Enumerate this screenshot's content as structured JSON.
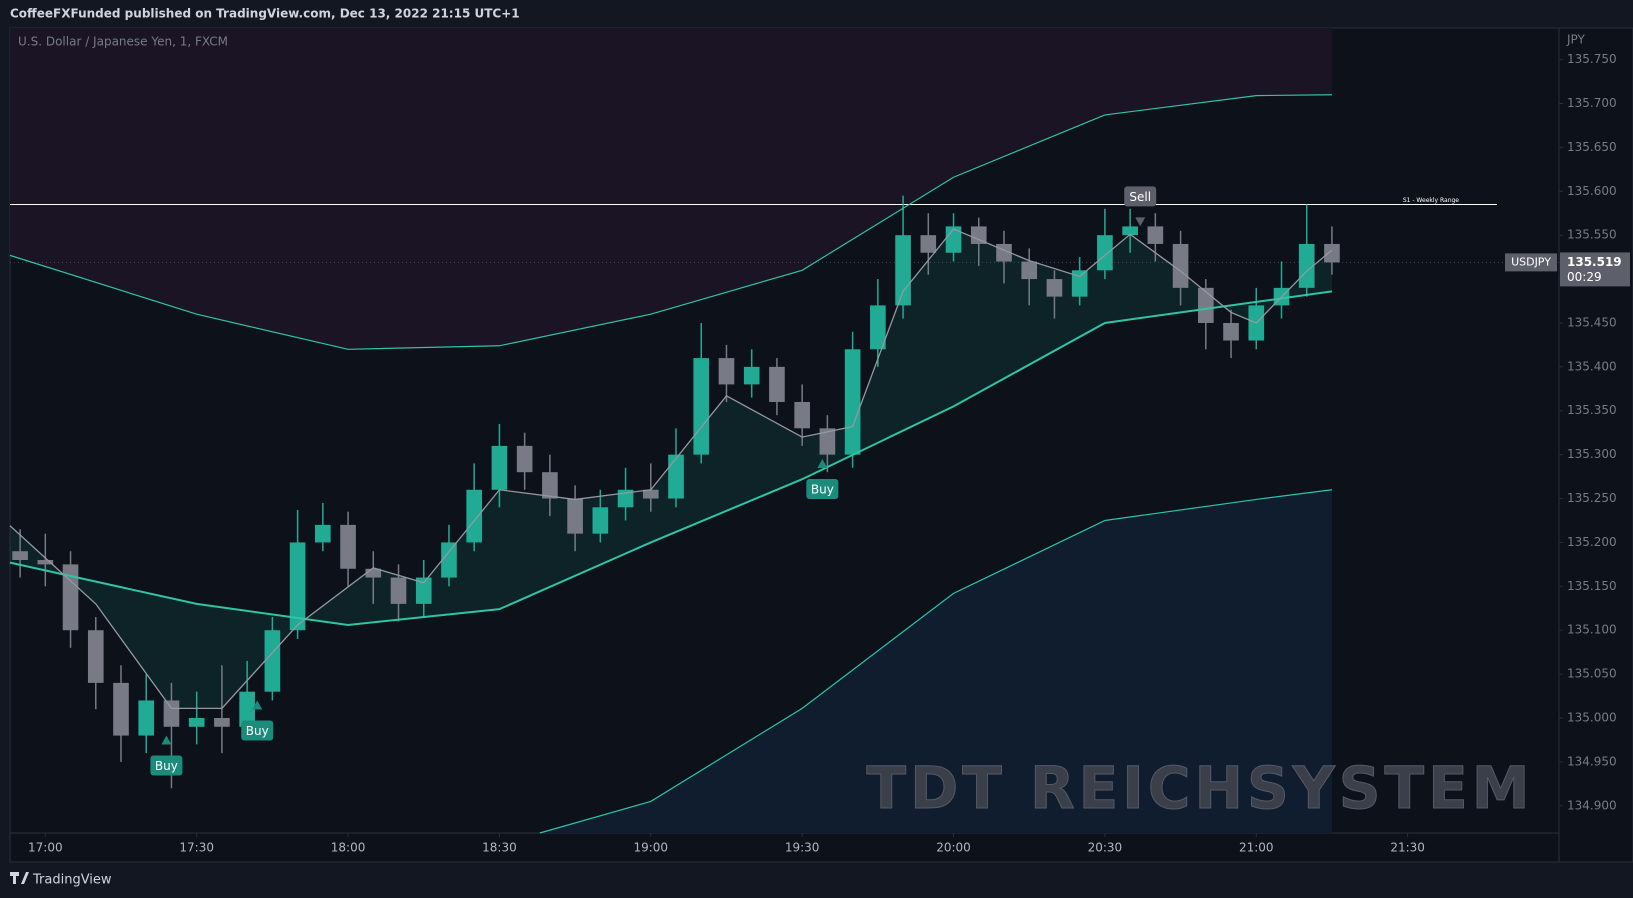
{
  "header": {
    "publisher": "CoffeeFXFunded published on TradingView.com, Dec 13, 2022 21:15 UTC+1",
    "footer": "TradingView"
  },
  "chart_data": {
    "type": "candlestick",
    "title": "U.S. Dollar / Japanese Yen, 1, FXCM",
    "y_axis_label": "JPY",
    "watermark": "TDT REICHSYSTEM",
    "up_color": "#22ab94",
    "down_color": "#787b86",
    "xlim": [
      1013,
      1320
    ],
    "ylim": [
      134.869,
      135.786
    ],
    "xticks": [
      {
        "value": 1020,
        "label": "17:00"
      },
      {
        "value": 1050,
        "label": "17:30"
      },
      {
        "value": 1080,
        "label": "18:00"
      },
      {
        "value": 1110,
        "label": "18:30"
      },
      {
        "value": 1140,
        "label": "19:00"
      },
      {
        "value": 1170,
        "label": "19:30"
      },
      {
        "value": 1200,
        "label": "20:00"
      },
      {
        "value": 1230,
        "label": "20:30"
      },
      {
        "value": 1260,
        "label": "21:00"
      },
      {
        "value": 1290,
        "label": "21:30"
      }
    ],
    "yticks": [
      {
        "value": 134.9,
        "label": "134.900"
      },
      {
        "value": 134.95,
        "label": "134.950"
      },
      {
        "value": 135.0,
        "label": "135.000"
      },
      {
        "value": 135.05,
        "label": "135.050"
      },
      {
        "value": 135.1,
        "label": "135.100"
      },
      {
        "value": 135.15,
        "label": "135.150"
      },
      {
        "value": 135.2,
        "label": "135.200"
      },
      {
        "value": 135.25,
        "label": "135.250"
      },
      {
        "value": 135.3,
        "label": "135.300"
      },
      {
        "value": 135.35,
        "label": "135.350"
      },
      {
        "value": 135.4,
        "label": "135.400"
      },
      {
        "value": 135.45,
        "label": "135.450"
      },
      {
        "value": 135.5,
        "label": "135.500"
      },
      {
        "value": 135.55,
        "label": "135.550"
      },
      {
        "value": 135.6,
        "label": "135.600"
      },
      {
        "value": 135.65,
        "label": "135.650"
      },
      {
        "value": 135.7,
        "label": "135.700"
      },
      {
        "value": 135.75,
        "label": "135.750"
      }
    ],
    "x": [
      1015,
      1020,
      1025,
      1030,
      1035,
      1040,
      1045,
      1050,
      1055,
      1060,
      1065,
      1070,
      1075,
      1080,
      1085,
      1090,
      1095,
      1100,
      1105,
      1110,
      1115,
      1120,
      1125,
      1130,
      1135,
      1140,
      1145,
      1150,
      1155,
      1160,
      1165,
      1170,
      1175,
      1180,
      1185,
      1190,
      1195,
      1200,
      1205,
      1210,
      1215,
      1220,
      1225,
      1230,
      1235,
      1240,
      1245,
      1250,
      1255,
      1260,
      1265,
      1270,
      1275
    ],
    "open": [
      135.19,
      135.18,
      135.175,
      135.1,
      135.04,
      134.98,
      135.02,
      134.99,
      135.0,
      134.99,
      135.03,
      135.1,
      135.2,
      135.22,
      135.17,
      135.16,
      135.13,
      135.16,
      135.2,
      135.26,
      135.31,
      135.28,
      135.25,
      135.21,
      135.24,
      135.26,
      135.25,
      135.3,
      135.41,
      135.38,
      135.4,
      135.36,
      135.33,
      135.3,
      135.42,
      135.47,
      135.55,
      135.53,
      135.56,
      135.54,
      135.52,
      135.5,
      135.48,
      135.51,
      135.55,
      135.56,
      135.54,
      135.49,
      135.45,
      135.43,
      135.47,
      135.49,
      135.54
    ],
    "high": [
      135.215,
      135.21,
      135.19,
      135.115,
      135.06,
      135.05,
      135.04,
      135.03,
      135.06,
      135.065,
      135.115,
      135.237,
      135.245,
      135.235,
      135.19,
      135.175,
      135.18,
      135.22,
      135.29,
      135.335,
      135.325,
      135.3,
      135.265,
      135.26,
      135.285,
      135.29,
      135.33,
      135.45,
      135.425,
      135.42,
      135.41,
      135.38,
      135.345,
      135.44,
      135.5,
      135.595,
      135.575,
      135.575,
      135.57,
      135.555,
      135.535,
      135.51,
      135.525,
      135.58,
      135.58,
      135.575,
      135.555,
      135.5,
      135.465,
      135.49,
      135.52,
      135.585,
      135.56
    ],
    "low": [
      135.16,
      135.15,
      135.08,
      135.01,
      134.95,
      134.96,
      134.92,
      134.97,
      134.96,
      134.975,
      135.02,
      135.09,
      135.19,
      135.15,
      135.13,
      135.11,
      135.115,
      135.15,
      135.19,
      135.24,
      135.26,
      135.23,
      135.19,
      135.2,
      135.225,
      135.235,
      135.24,
      135.29,
      135.36,
      135.365,
      135.345,
      135.31,
      135.28,
      135.285,
      135.4,
      135.455,
      135.505,
      135.52,
      135.515,
      135.495,
      135.47,
      135.455,
      135.47,
      135.5,
      135.53,
      135.52,
      135.47,
      135.42,
      135.41,
      135.42,
      135.455,
      135.48,
      135.505
    ],
    "close": [
      135.18,
      135.175,
      135.1,
      135.04,
      134.98,
      135.02,
      134.99,
      135.0,
      134.99,
      135.03,
      135.1,
      135.2,
      135.22,
      135.17,
      135.16,
      135.13,
      135.16,
      135.2,
      135.26,
      135.31,
      135.28,
      135.25,
      135.21,
      135.24,
      135.26,
      135.25,
      135.3,
      135.41,
      135.38,
      135.4,
      135.36,
      135.33,
      135.3,
      135.42,
      135.47,
      135.55,
      135.53,
      135.56,
      135.54,
      135.52,
      135.5,
      135.48,
      135.51,
      135.55,
      135.56,
      135.54,
      135.49,
      135.45,
      135.43,
      135.47,
      135.49,
      135.54,
      135.519
    ],
    "lines": [
      {
        "color": "#2ec4a5",
        "width": 1.2,
        "fill": "#1a1424",
        "fill_to": "top",
        "x": [
          1013,
          1050,
          1080,
          1110,
          1140,
          1170,
          1200,
          1230,
          1260,
          1275
        ],
        "values": [
          135.527,
          135.46,
          135.42,
          135.424,
          135.46,
          135.51,
          135.616,
          135.687,
          135.709,
          135.71
        ]
      },
      {
        "color": "#2ec4a5",
        "width": 1.2,
        "fill": "#0f1d2e",
        "fill_to": "bottom",
        "x": [
          1118,
          1140,
          1170,
          1200,
          1230,
          1260,
          1275
        ],
        "values": [
          134.869,
          134.905,
          135.011,
          135.142,
          135.225,
          135.249,
          135.26
        ]
      },
      {
        "color": "#2ec4a5",
        "width": 2,
        "x": [
          1013,
          1050,
          1080,
          1110,
          1140,
          1170,
          1200,
          1230,
          1260,
          1275
        ],
        "values": [
          135.177,
          135.13,
          135.106,
          135.124,
          135.2,
          135.272,
          135.355,
          135.45,
          135.474,
          135.486
        ]
      },
      {
        "color": "#9598a1",
        "width": 1.3,
        "x": [
          1013,
          1030,
          1045,
          1055,
          1070,
          1085,
          1095,
          1110,
          1125,
          1140,
          1155,
          1170,
          1180,
          1190,
          1200,
          1215,
          1225,
          1235,
          1245,
          1255,
          1260,
          1270,
          1275
        ],
        "values": [
          135.219,
          135.13,
          135.011,
          135.011,
          135.106,
          135.171,
          135.154,
          135.26,
          135.249,
          135.26,
          135.367,
          135.32,
          135.332,
          135.486,
          135.557,
          135.521,
          135.503,
          135.551,
          135.509,
          135.462,
          135.45,
          135.509,
          135.533
        ]
      }
    ],
    "hlines": [
      {
        "value": 135.585,
        "label": "S1 - Weekly Range",
        "color": "#ffffff"
      }
    ],
    "annotations": [
      {
        "text": "Buy",
        "x": 1044,
        "y": 134.98,
        "position": "below",
        "color": "#1b8b7c"
      },
      {
        "text": "Buy",
        "x": 1062,
        "y": 135.02,
        "position": "below",
        "color": "#1b8b7c"
      },
      {
        "text": "Buy",
        "x": 1174,
        "y": 135.295,
        "position": "below",
        "color": "#1b8b7c"
      },
      {
        "text": "Sell",
        "x": 1237,
        "y": 135.56,
        "position": "above",
        "color": "#5d606b"
      }
    ],
    "last_price": {
      "symbol": "USDJPY",
      "value": 135.519,
      "countdown": "00:29"
    }
  }
}
